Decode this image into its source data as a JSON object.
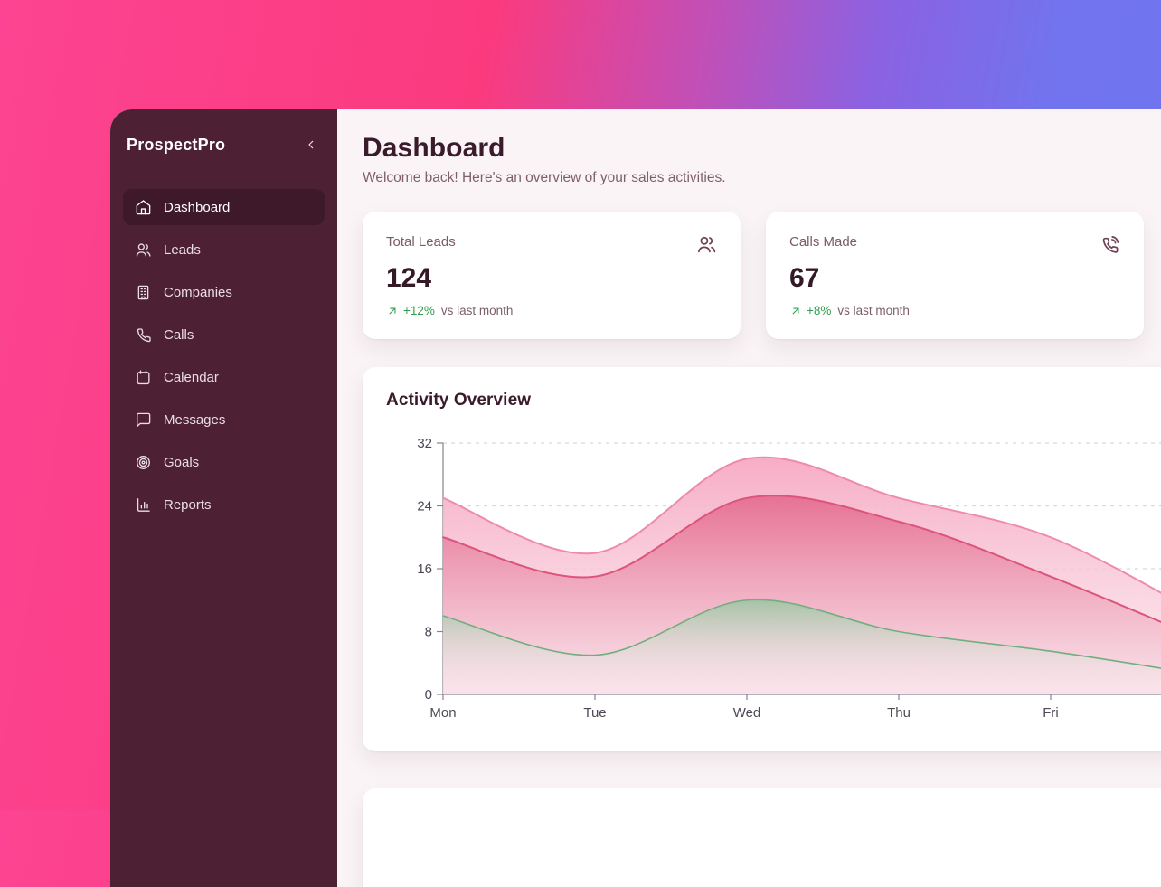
{
  "app": {
    "name": "ProspectPro"
  },
  "sidebar": {
    "collapse_icon": "chevron-left",
    "items": [
      {
        "label": "Dashboard",
        "icon": "home",
        "active": true
      },
      {
        "label": "Leads",
        "icon": "users",
        "active": false
      },
      {
        "label": "Companies",
        "icon": "building",
        "active": false
      },
      {
        "label": "Calls",
        "icon": "phone",
        "active": false
      },
      {
        "label": "Calendar",
        "icon": "calendar",
        "active": false
      },
      {
        "label": "Messages",
        "icon": "message-square",
        "active": false
      },
      {
        "label": "Goals",
        "icon": "target",
        "active": false
      },
      {
        "label": "Reports",
        "icon": "bar-chart",
        "active": false
      }
    ]
  },
  "header": {
    "title": "Dashboard",
    "subtitle": "Welcome back! Here's an overview of your sales activities."
  },
  "stats": [
    {
      "label": "Total Leads",
      "value": "124",
      "icon": "users",
      "trend_icon": "arrow-up-right",
      "change": "+12%",
      "change_suffix": "vs last month"
    },
    {
      "label": "Calls Made",
      "value": "67",
      "icon": "phone-call",
      "trend_icon": "arrow-up-right",
      "change": "+8%",
      "change_suffix": "vs last month"
    }
  ],
  "chart_card": {
    "title": "Activity Overview"
  },
  "chart_data": {
    "type": "area",
    "title": "Activity Overview",
    "x": [
      "Mon",
      "Tue",
      "Wed",
      "Thu",
      "Fri"
    ],
    "series": [
      {
        "name": "outer-light-pink-band",
        "values": [
          25,
          18,
          30,
          25,
          20
        ],
        "offscreen_trail_value": 10,
        "stroke": "#ee8aac",
        "stroke_width": 2,
        "fill_top": "#f6a9c3",
        "fill_opacity_top": 0.95,
        "fill_bottom": "#fbe9ef",
        "fill_opacity_bottom": 0.75
      },
      {
        "name": "middle-dark-pink-band",
        "values": [
          20,
          15,
          25,
          22,
          15
        ],
        "offscreen_trail_value": 7,
        "stroke": "#dd537b",
        "stroke_width": 2,
        "fill_top": "#e56e92",
        "fill_opacity_top": 0.95,
        "fill_bottom": "#f7d9e2",
        "fill_opacity_bottom": 0.55
      },
      {
        "name": "bottom-green-band",
        "values": [
          10,
          5,
          12,
          8,
          5.5
        ],
        "offscreen_trail_value": 2.5,
        "stroke": "#6fae7e",
        "stroke_width": 1.6,
        "fill_top": "#9cc5a2",
        "fill_opacity_top": 0.9,
        "fill_bottom": "#ffffff",
        "fill_opacity_bottom": 0
      }
    ],
    "ylim": [
      0,
      32
    ],
    "yticks": [
      0,
      8,
      16,
      24,
      32
    ],
    "xlabel": "",
    "ylabel": "",
    "grid": "horizontal-dashed",
    "legend_position": "none",
    "note": "bands continue past Fri and are clipped at the right edge of the viewport"
  },
  "colors": {
    "bg_gradient_pink": "#fb3a7e",
    "bg_gradient_purple": "#7174ee",
    "sidebar_bg": "#4d2133",
    "sidebar_active_bg": "#3d192a",
    "content_bg": "#faf4f6",
    "card_bg": "#ffffff",
    "heading_text": "#3a1b2b",
    "muted_text": "#7e5f6d",
    "value_text": "#331a26",
    "positive_green": "#2f9e4c",
    "card_icon": "#6d4254",
    "axis_gray": "#8a8290",
    "gridline": "#ddd6db"
  }
}
